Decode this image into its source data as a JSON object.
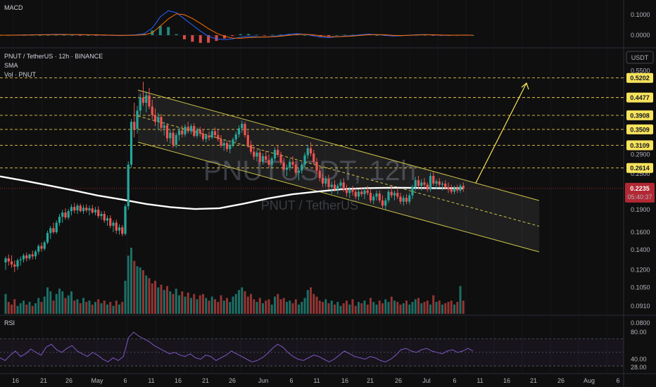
{
  "header": {
    "symbol_line": "PNUT / TetherUS · 12h · BINANCE",
    "sma_label": "SMA",
    "vol_label": "Vol · PNUT",
    "watermark_big": "PNUTUSDT, 12h",
    "watermark_small": "PNUT / TetherUS",
    "currency_button": "USDT"
  },
  "macd": {
    "title": "MACD",
    "ticks": [
      "0.1000",
      "0.0000"
    ]
  },
  "rsi": {
    "title": "RSI",
    "ticks": [
      "80.00",
      "40.00",
      "28.00"
    ]
  },
  "price_axis": {
    "ticks": [
      "0.5500",
      "0.2900",
      "0.2500",
      "0.1900",
      "0.1600",
      "0.1400",
      "0.1200",
      "0.1050",
      "0.0910",
      "0.0800"
    ]
  },
  "levels": [
    "0.5202",
    "0.4477",
    "0.3908",
    "0.3509",
    "0.3109",
    "0.2614"
  ],
  "current_price": {
    "value": "0.2235",
    "countdown": "05:40:37"
  },
  "time_axis": {
    "labels": [
      "16",
      "21",
      "26",
      "May",
      "6",
      "11",
      "16",
      "21",
      "26",
      "Jun",
      "6",
      "11",
      "16",
      "21",
      "26",
      "Jul",
      "6",
      "11",
      "16",
      "21",
      "26",
      "Aug",
      "6"
    ]
  },
  "colors": {
    "background": "#0f0f0f",
    "up": "#26a69a",
    "down": "#ef5350",
    "level_line": "#e6c84a",
    "level_tag": "#f7e35c",
    "channel": "#c9c14a",
    "sma": "#ffffff",
    "rsi_line": "#7e57c2",
    "macd_line": "#2962ff",
    "signal_line": "#ff6d00",
    "price_tag": "#b22833"
  },
  "chart_data": {
    "type": "candlestick",
    "title": "PNUT / TetherUS · 12h · BINANCE",
    "y_scale": "log",
    "levels": [
      0.5202,
      0.4477,
      0.3908,
      0.3509,
      0.3109,
      0.2614
    ],
    "current_price": 0.2235,
    "candles": [
      [
        0.127,
        0.133,
        0.12,
        0.131
      ],
      [
        0.131,
        0.135,
        0.124,
        0.128
      ],
      [
        0.128,
        0.134,
        0.122,
        0.125
      ],
      [
        0.125,
        0.129,
        0.118,
        0.123
      ],
      [
        0.123,
        0.131,
        0.12,
        0.129
      ],
      [
        0.129,
        0.133,
        0.124,
        0.13
      ],
      [
        0.13,
        0.136,
        0.127,
        0.134
      ],
      [
        0.134,
        0.137,
        0.128,
        0.131
      ],
      [
        0.131,
        0.136,
        0.129,
        0.135
      ],
      [
        0.135,
        0.139,
        0.13,
        0.133
      ],
      [
        0.133,
        0.14,
        0.13,
        0.138
      ],
      [
        0.138,
        0.146,
        0.135,
        0.144
      ],
      [
        0.144,
        0.148,
        0.138,
        0.141
      ],
      [
        0.141,
        0.15,
        0.139,
        0.148
      ],
      [
        0.148,
        0.162,
        0.146,
        0.159
      ],
      [
        0.159,
        0.168,
        0.152,
        0.165
      ],
      [
        0.165,
        0.172,
        0.158,
        0.16
      ],
      [
        0.16,
        0.175,
        0.158,
        0.172
      ],
      [
        0.172,
        0.184,
        0.168,
        0.18
      ],
      [
        0.18,
        0.19,
        0.172,
        0.186
      ],
      [
        0.186,
        0.192,
        0.176,
        0.179
      ],
      [
        0.179,
        0.191,
        0.176,
        0.188
      ],
      [
        0.188,
        0.198,
        0.182,
        0.194
      ],
      [
        0.194,
        0.2,
        0.185,
        0.189
      ],
      [
        0.189,
        0.199,
        0.184,
        0.196
      ],
      [
        0.196,
        0.199,
        0.186,
        0.188
      ],
      [
        0.188,
        0.197,
        0.184,
        0.193
      ],
      [
        0.193,
        0.198,
        0.186,
        0.189
      ],
      [
        0.189,
        0.196,
        0.182,
        0.192
      ],
      [
        0.192,
        0.197,
        0.184,
        0.186
      ],
      [
        0.186,
        0.194,
        0.182,
        0.19
      ],
      [
        0.19,
        0.195,
        0.178,
        0.181
      ],
      [
        0.181,
        0.188,
        0.176,
        0.184
      ],
      [
        0.184,
        0.188,
        0.172,
        0.175
      ],
      [
        0.175,
        0.182,
        0.168,
        0.178
      ],
      [
        0.178,
        0.182,
        0.165,
        0.168
      ],
      [
        0.168,
        0.175,
        0.16,
        0.172
      ],
      [
        0.172,
        0.176,
        0.158,
        0.162
      ],
      [
        0.162,
        0.17,
        0.157,
        0.166
      ],
      [
        0.166,
        0.169,
        0.155,
        0.158
      ],
      [
        0.158,
        0.198,
        0.156,
        0.195
      ],
      [
        0.195,
        0.275,
        0.19,
        0.268
      ],
      [
        0.268,
        0.38,
        0.262,
        0.372
      ],
      [
        0.372,
        0.43,
        0.33,
        0.352
      ],
      [
        0.352,
        0.42,
        0.34,
        0.405
      ],
      [
        0.405,
        0.46,
        0.39,
        0.448
      ],
      [
        0.448,
        0.505,
        0.42,
        0.43
      ],
      [
        0.43,
        0.47,
        0.4,
        0.455
      ],
      [
        0.455,
        0.482,
        0.41,
        0.418
      ],
      [
        0.418,
        0.44,
        0.38,
        0.392
      ],
      [
        0.392,
        0.412,
        0.36,
        0.372
      ],
      [
        0.372,
        0.398,
        0.35,
        0.386
      ],
      [
        0.386,
        0.395,
        0.345,
        0.355
      ],
      [
        0.355,
        0.372,
        0.335,
        0.362
      ],
      [
        0.362,
        0.368,
        0.32,
        0.328
      ],
      [
        0.328,
        0.352,
        0.315,
        0.342
      ],
      [
        0.342,
        0.35,
        0.305,
        0.312
      ],
      [
        0.312,
        0.342,
        0.305,
        0.336
      ],
      [
        0.336,
        0.356,
        0.322,
        0.348
      ],
      [
        0.348,
        0.362,
        0.33,
        0.338
      ],
      [
        0.338,
        0.365,
        0.332,
        0.358
      ],
      [
        0.358,
        0.372,
        0.34,
        0.346
      ],
      [
        0.346,
        0.366,
        0.338,
        0.36
      ],
      [
        0.36,
        0.368,
        0.33,
        0.334
      ],
      [
        0.334,
        0.356,
        0.328,
        0.35
      ],
      [
        0.35,
        0.358,
        0.332,
        0.34
      ],
      [
        0.34,
        0.352,
        0.32,
        0.326
      ],
      [
        0.326,
        0.34,
        0.318,
        0.335
      ],
      [
        0.335,
        0.345,
        0.322,
        0.33
      ],
      [
        0.33,
        0.352,
        0.326,
        0.346
      ],
      [
        0.346,
        0.356,
        0.33,
        0.336
      ],
      [
        0.336,
        0.35,
        0.32,
        0.326
      ],
      [
        0.326,
        0.336,
        0.305,
        0.31
      ],
      [
        0.31,
        0.325,
        0.298,
        0.316
      ],
      [
        0.316,
        0.322,
        0.296,
        0.302
      ],
      [
        0.302,
        0.318,
        0.292,
        0.312
      ],
      [
        0.312,
        0.33,
        0.306,
        0.325
      ],
      [
        0.325,
        0.345,
        0.318,
        0.338
      ],
      [
        0.338,
        0.362,
        0.33,
        0.354
      ],
      [
        0.354,
        0.375,
        0.342,
        0.366
      ],
      [
        0.366,
        0.372,
        0.33,
        0.336
      ],
      [
        0.336,
        0.348,
        0.305,
        0.312
      ],
      [
        0.312,
        0.322,
        0.29,
        0.296
      ],
      [
        0.296,
        0.308,
        0.278,
        0.285
      ],
      [
        0.285,
        0.3,
        0.275,
        0.294
      ],
      [
        0.294,
        0.302,
        0.268,
        0.274
      ],
      [
        0.274,
        0.292,
        0.268,
        0.286
      ],
      [
        0.286,
        0.298,
        0.272,
        0.278
      ],
      [
        0.278,
        0.29,
        0.262,
        0.268
      ],
      [
        0.268,
        0.285,
        0.262,
        0.281
      ],
      [
        0.281,
        0.306,
        0.276,
        0.3
      ],
      [
        0.3,
        0.312,
        0.284,
        0.29
      ],
      [
        0.29,
        0.296,
        0.268,
        0.272
      ],
      [
        0.272,
        0.282,
        0.255,
        0.258
      ],
      [
        0.258,
        0.268,
        0.246,
        0.262
      ],
      [
        0.262,
        0.28,
        0.256,
        0.274
      ],
      [
        0.274,
        0.286,
        0.262,
        0.268
      ],
      [
        0.268,
        0.276,
        0.248,
        0.252
      ],
      [
        0.252,
        0.262,
        0.238,
        0.256
      ],
      [
        0.256,
        0.274,
        0.25,
        0.268
      ],
      [
        0.268,
        0.294,
        0.262,
        0.288
      ],
      [
        0.288,
        0.312,
        0.28,
        0.304
      ],
      [
        0.304,
        0.318,
        0.286,
        0.292
      ],
      [
        0.292,
        0.3,
        0.268,
        0.274
      ],
      [
        0.274,
        0.282,
        0.25,
        0.256
      ],
      [
        0.256,
        0.264,
        0.236,
        0.242
      ],
      [
        0.242,
        0.25,
        0.226,
        0.232
      ],
      [
        0.232,
        0.246,
        0.226,
        0.24
      ],
      [
        0.24,
        0.248,
        0.222,
        0.226
      ],
      [
        0.226,
        0.236,
        0.214,
        0.23
      ],
      [
        0.23,
        0.238,
        0.218,
        0.222
      ],
      [
        0.222,
        0.232,
        0.214,
        0.228
      ],
      [
        0.228,
        0.24,
        0.222,
        0.234
      ],
      [
        0.234,
        0.242,
        0.218,
        0.222
      ],
      [
        0.222,
        0.23,
        0.21,
        0.216
      ],
      [
        0.216,
        0.226,
        0.208,
        0.222
      ],
      [
        0.222,
        0.228,
        0.212,
        0.218
      ],
      [
        0.218,
        0.225,
        0.206,
        0.21
      ],
      [
        0.21,
        0.222,
        0.204,
        0.218
      ],
      [
        0.218,
        0.226,
        0.21,
        0.214
      ],
      [
        0.214,
        0.224,
        0.206,
        0.22
      ],
      [
        0.22,
        0.228,
        0.212,
        0.216
      ],
      [
        0.216,
        0.222,
        0.2,
        0.204
      ],
      [
        0.204,
        0.214,
        0.198,
        0.21
      ],
      [
        0.21,
        0.22,
        0.204,
        0.215
      ],
      [
        0.215,
        0.22,
        0.2,
        0.204
      ],
      [
        0.204,
        0.212,
        0.192,
        0.196
      ],
      [
        0.196,
        0.208,
        0.19,
        0.204
      ],
      [
        0.204,
        0.222,
        0.2,
        0.218
      ],
      [
        0.218,
        0.228,
        0.208,
        0.212
      ],
      [
        0.212,
        0.22,
        0.204,
        0.216
      ],
      [
        0.216,
        0.224,
        0.206,
        0.21
      ],
      [
        0.21,
        0.216,
        0.198,
        0.202
      ],
      [
        0.202,
        0.212,
        0.196,
        0.208
      ],
      [
        0.208,
        0.214,
        0.198,
        0.202
      ],
      [
        0.202,
        0.216,
        0.198,
        0.212
      ],
      [
        0.212,
        0.23,
        0.206,
        0.226
      ],
      [
        0.226,
        0.244,
        0.22,
        0.238
      ],
      [
        0.238,
        0.246,
        0.222,
        0.228
      ],
      [
        0.228,
        0.24,
        0.22,
        0.234
      ],
      [
        0.234,
        0.242,
        0.224,
        0.23
      ],
      [
        0.23,
        0.234,
        0.218,
        0.222
      ],
      [
        0.222,
        0.252,
        0.218,
        0.246
      ],
      [
        0.246,
        0.254,
        0.228,
        0.232
      ],
      [
        0.232,
        0.24,
        0.222,
        0.236
      ],
      [
        0.236,
        0.242,
        0.226,
        0.23
      ],
      [
        0.23,
        0.236,
        0.22,
        0.232
      ],
      [
        0.232,
        0.238,
        0.222,
        0.226
      ],
      [
        0.226,
        0.234,
        0.216,
        0.222
      ],
      [
        0.222,
        0.23,
        0.214,
        0.218
      ],
      [
        0.218,
        0.228,
        0.214,
        0.224
      ],
      [
        0.224,
        0.23,
        0.216,
        0.22
      ],
      [
        0.22,
        0.232,
        0.216,
        0.228
      ],
      [
        0.228,
        0.234,
        0.218,
        0.2235
      ]
    ],
    "sma": [
      0.245,
      0.2372,
      0.2287,
      0.2204,
      0.2118,
      0.2053,
      0.1985,
      0.1938,
      0.191,
      0.1922,
      0.199,
      0.2072,
      0.2138,
      0.2182,
      0.2222,
      0.224,
      0.2248,
      0.2244,
      0.224,
      0.2238
    ],
    "volume": [
      30,
      18,
      14,
      22,
      12,
      16,
      20,
      14,
      18,
      12,
      16,
      24,
      18,
      26,
      40,
      34,
      20,
      30,
      38,
      34,
      24,
      28,
      34,
      20,
      22,
      16,
      24,
      18,
      20,
      14,
      18,
      22,
      16,
      20,
      14,
      18,
      12,
      20,
      14,
      18,
      50,
      88,
      100,
      80,
      72,
      70,
      66,
      58,
      54,
      46,
      50,
      40,
      44,
      36,
      42,
      34,
      30,
      38,
      28,
      34,
      26,
      32,
      24,
      30,
      22,
      28,
      30,
      24,
      20,
      26,
      22,
      18,
      28,
      20,
      24,
      18,
      26,
      30,
      36,
      40,
      34,
      26,
      30,
      22,
      18,
      24,
      16,
      20,
      22,
      14,
      26,
      30,
      22,
      24,
      18,
      20,
      16,
      22,
      14,
      18,
      24,
      36,
      40,
      30,
      26,
      20,
      18,
      22,
      16,
      20,
      14,
      18,
      12,
      16,
      20,
      14,
      22,
      12,
      18,
      16,
      20,
      14,
      24,
      18,
      14,
      20,
      16,
      22,
      18,
      26,
      20,
      18,
      14,
      16,
      20,
      14,
      18,
      22,
      24,
      16,
      18,
      20,
      14,
      28,
      18,
      20,
      14,
      16,
      18,
      20,
      14,
      18,
      42,
      20
    ],
    "rsi": [
      42,
      38,
      46,
      52,
      44,
      48,
      55,
      50,
      46,
      58,
      62,
      54,
      50,
      56,
      60,
      52,
      48,
      44,
      50,
      46,
      40,
      36,
      42,
      38,
      44,
      72,
      80,
      74,
      70,
      66,
      60,
      56,
      52,
      48,
      50,
      46,
      44,
      48,
      42,
      40,
      46,
      44,
      38,
      42,
      46,
      52,
      48,
      44,
      40,
      36,
      38,
      42,
      48,
      56,
      62,
      58,
      50,
      44,
      40,
      38,
      42,
      46,
      44,
      40,
      36,
      40,
      46,
      52,
      48,
      44,
      42,
      40,
      44,
      42,
      38,
      36,
      40,
      46,
      54,
      56,
      52,
      50,
      54,
      56,
      52,
      50,
      48,
      52,
      54,
      50,
      52,
      56,
      52
    ],
    "macd": [
      0.0,
      0.0,
      0.001,
      0.001,
      0.002,
      0.002,
      0.003,
      0.004,
      0.004,
      0.003,
      0.002,
      0.002,
      0.001,
      0.0,
      -0.001,
      -0.002,
      0.0,
      0.002,
      0.008,
      0.035,
      0.09,
      0.12,
      0.11,
      0.08,
      0.05,
      0.02,
      -0.005,
      -0.018,
      -0.022,
      -0.018,
      -0.01,
      -0.006,
      -0.008,
      -0.01,
      -0.006,
      -0.002,
      0.004,
      0.008,
      0.004,
      -0.002,
      -0.01,
      -0.012,
      -0.008,
      -0.004,
      -0.002,
      0.002,
      0.005,
      0.003,
      -0.001,
      -0.004,
      -0.003,
      0.0,
      0.002,
      0.003,
      0.001,
      0.0,
      -0.001,
      0.0,
      0.001,
      0.0
    ],
    "signal": [
      0.0,
      0.0,
      0.0,
      0.001,
      0.001,
      0.002,
      0.002,
      0.003,
      0.003,
      0.003,
      0.003,
      0.002,
      0.002,
      0.001,
      0.0,
      -0.001,
      -0.001,
      0.0,
      0.002,
      0.012,
      0.045,
      0.08,
      0.105,
      0.1,
      0.082,
      0.058,
      0.032,
      0.01,
      -0.006,
      -0.014,
      -0.015,
      -0.012,
      -0.01,
      -0.009,
      -0.008,
      -0.005,
      -0.001,
      0.003,
      0.004,
      0.002,
      -0.003,
      -0.007,
      -0.008,
      -0.006,
      -0.004,
      -0.001,
      0.002,
      0.003,
      0.002,
      -0.001,
      -0.002,
      -0.001,
      0.001,
      0.002,
      0.002,
      0.001,
      0.0,
      0.0,
      0.0,
      0.0
    ],
    "histogram": [
      0.0,
      0.0,
      0.001,
      0.0,
      0.001,
      0.0,
      0.001,
      0.001,
      0.001,
      0.0,
      -0.001,
      0.0,
      -0.001,
      -0.001,
      -0.001,
      -0.001,
      0.001,
      0.002,
      0.006,
      0.023,
      0.045,
      0.04,
      0.005,
      -0.02,
      -0.032,
      -0.038,
      -0.037,
      -0.028,
      -0.016,
      -0.004,
      0.005,
      0.006,
      0.002,
      -0.001,
      0.002,
      0.003,
      0.005,
      0.005,
      0.0,
      -0.004,
      -0.007,
      -0.005,
      0.0,
      0.002,
      0.002,
      0.003,
      0.003,
      0.0,
      -0.003,
      -0.003,
      -0.001,
      0.001,
      0.001,
      0.001,
      -0.001,
      -0.001,
      -0.001,
      0.0,
      0.001,
      0.0
    ]
  }
}
